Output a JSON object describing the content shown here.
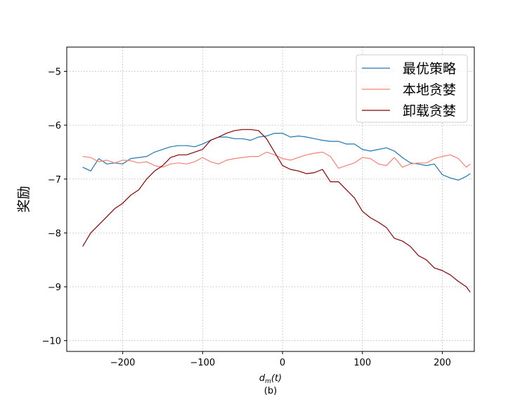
{
  "chart_data": {
    "type": "line",
    "title": "",
    "caption": "(b)",
    "xlabel": "d_m(t)",
    "xlabel_main": "d",
    "xlabel_sub": "m",
    "xlabel_rest": "(t)",
    "ylabel": "奖励",
    "xlim": [
      -270,
      240
    ],
    "ylim": [
      -10.2,
      -4.55
    ],
    "xticks": [
      -200,
      -100,
      0,
      100,
      200
    ],
    "yticks": [
      -5,
      -6,
      -7,
      -8,
      -9,
      -10
    ],
    "xtick_labels": [
      "−200",
      "−100",
      "0",
      "100",
      "200"
    ],
    "ytick_labels": [
      "−5",
      "−6",
      "−7",
      "−8",
      "−9",
      "−10"
    ],
    "grid": true,
    "legend_position": "top-right",
    "series": [
      {
        "name": "最优策略",
        "color": "#1f77b4",
        "x": [
          -250,
          -240,
          -230,
          -220,
          -210,
          -200,
          -190,
          -180,
          -170,
          -160,
          -150,
          -140,
          -130,
          -120,
          -110,
          -100,
          -90,
          -80,
          -70,
          -60,
          -50,
          -40,
          -30,
          -20,
          -10,
          0,
          10,
          20,
          30,
          40,
          50,
          60,
          70,
          80,
          90,
          100,
          110,
          120,
          130,
          140,
          150,
          160,
          170,
          180,
          190,
          200,
          210,
          220,
          230,
          235
        ],
        "y": [
          -6.78,
          -6.85,
          -6.62,
          -6.72,
          -6.7,
          -6.72,
          -6.62,
          -6.6,
          -6.58,
          -6.5,
          -6.45,
          -6.4,
          -6.38,
          -6.38,
          -6.4,
          -6.35,
          -6.28,
          -6.22,
          -6.22,
          -6.25,
          -6.25,
          -6.28,
          -6.22,
          -6.2,
          -6.15,
          -6.15,
          -6.22,
          -6.2,
          -6.22,
          -6.25,
          -6.28,
          -6.3,
          -6.3,
          -6.35,
          -6.35,
          -6.45,
          -6.48,
          -6.45,
          -6.42,
          -6.48,
          -6.6,
          -6.7,
          -6.72,
          -6.75,
          -6.72,
          -6.92,
          -6.98,
          -7.02,
          -6.95,
          -6.9
        ]
      },
      {
        "name": "本地贪婪",
        "color": "#fa8072",
        "x": [
          -250,
          -240,
          -230,
          -220,
          -210,
          -200,
          -190,
          -180,
          -170,
          -160,
          -150,
          -140,
          -130,
          -120,
          -110,
          -100,
          -90,
          -80,
          -70,
          -60,
          -50,
          -40,
          -30,
          -20,
          -10,
          0,
          10,
          20,
          30,
          40,
          50,
          60,
          70,
          80,
          90,
          100,
          110,
          120,
          130,
          140,
          150,
          160,
          170,
          180,
          190,
          200,
          210,
          220,
          230,
          235
        ],
        "y": [
          -6.58,
          -6.6,
          -6.68,
          -6.65,
          -6.7,
          -6.65,
          -6.66,
          -6.7,
          -6.68,
          -6.75,
          -6.78,
          -6.72,
          -6.7,
          -6.72,
          -6.68,
          -6.6,
          -6.68,
          -6.72,
          -6.65,
          -6.62,
          -6.6,
          -6.58,
          -6.58,
          -6.5,
          -6.55,
          -6.62,
          -6.65,
          -6.6,
          -6.55,
          -6.52,
          -6.5,
          -6.58,
          -6.8,
          -6.75,
          -6.7,
          -6.6,
          -6.62,
          -6.72,
          -6.75,
          -6.6,
          -6.78,
          -6.72,
          -6.7,
          -6.7,
          -6.62,
          -6.58,
          -6.55,
          -6.62,
          -6.78,
          -6.72
        ]
      },
      {
        "name": "卸载贪婪",
        "color": "#8b0000",
        "x": [
          -250,
          -240,
          -230,
          -220,
          -210,
          -200,
          -190,
          -180,
          -170,
          -160,
          -150,
          -140,
          -130,
          -120,
          -110,
          -100,
          -90,
          -80,
          -70,
          -60,
          -50,
          -40,
          -30,
          -20,
          -10,
          0,
          10,
          20,
          30,
          40,
          50,
          60,
          70,
          80,
          90,
          100,
          110,
          120,
          130,
          140,
          150,
          160,
          170,
          180,
          190,
          200,
          210,
          220,
          230,
          235
        ],
        "y": [
          -8.25,
          -8.0,
          -7.85,
          -7.7,
          -7.55,
          -7.45,
          -7.3,
          -7.2,
          -7.0,
          -6.85,
          -6.75,
          -6.6,
          -6.55,
          -6.55,
          -6.5,
          -6.45,
          -6.28,
          -6.22,
          -6.15,
          -6.1,
          -6.08,
          -6.08,
          -6.1,
          -6.25,
          -6.5,
          -6.75,
          -6.82,
          -6.85,
          -6.9,
          -6.88,
          -6.82,
          -7.05,
          -7.05,
          -7.2,
          -7.35,
          -7.6,
          -7.72,
          -7.8,
          -7.9,
          -8.1,
          -8.15,
          -8.25,
          -8.42,
          -8.5,
          -8.65,
          -8.7,
          -8.78,
          -8.9,
          -9.0,
          -9.1
        ]
      }
    ]
  }
}
